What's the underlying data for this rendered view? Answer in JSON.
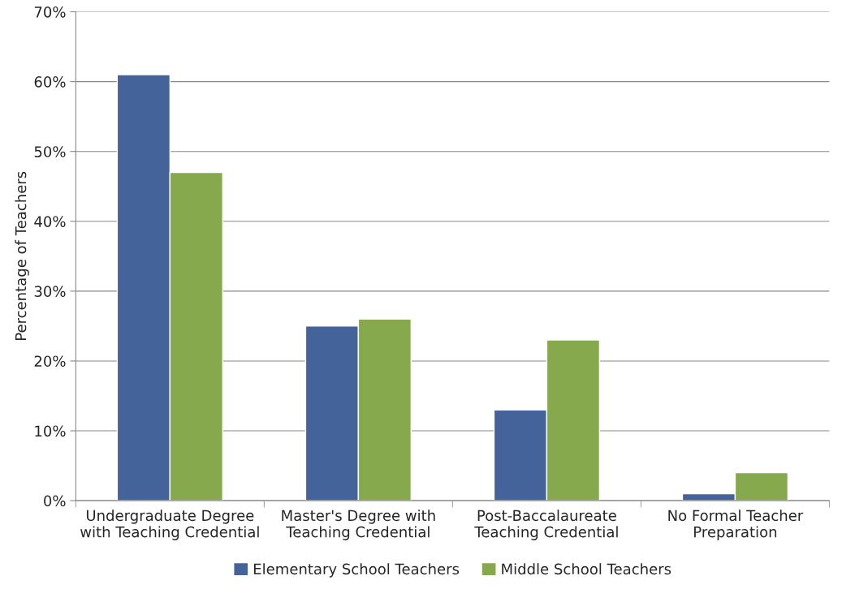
{
  "chart_data": {
    "type": "bar",
    "ylabel": "Percentage of Teachers",
    "categories": [
      "Undergraduate Degree\nwith Teaching Credential",
      "Master's Degree with\nTeaching Credential",
      "Post-Baccalaureate\nTeaching Credential",
      "No Formal Teacher\nPreparation"
    ],
    "series": [
      {
        "name": "Elementary School Teachers",
        "color": "#44639a",
        "values": [
          61,
          25,
          13,
          1
        ]
      },
      {
        "name": "Middle School Teachers",
        "color": "#87a94e",
        "values": [
          47,
          26,
          23,
          4
        ]
      }
    ],
    "ylim": [
      0,
      70
    ],
    "yticks": [
      {
        "value": 0,
        "label": "0%"
      },
      {
        "value": 10,
        "label": "10%"
      },
      {
        "value": 20,
        "label": "20%"
      },
      {
        "value": 30,
        "label": "30%"
      },
      {
        "value": 40,
        "label": "40%"
      },
      {
        "value": 50,
        "label": "50%"
      },
      {
        "value": 60,
        "label": "60%"
      },
      {
        "value": 70,
        "label": "70%"
      }
    ],
    "grid": "y",
    "legend": "bottom"
  }
}
